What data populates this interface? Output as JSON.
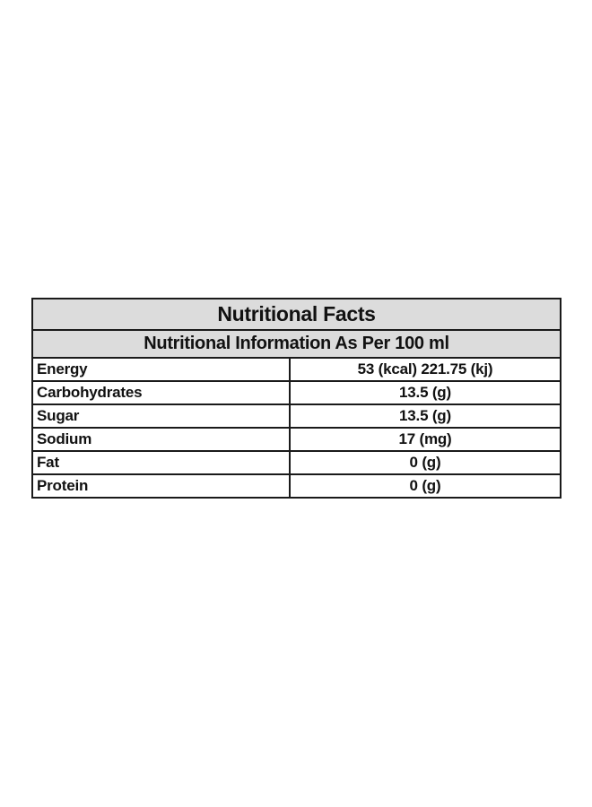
{
  "table": {
    "title": "Nutritional Facts",
    "subtitle": "Nutritional Information As Per 100 ml",
    "rows": [
      {
        "name": "Energy",
        "value": "53 (kcal) 221.75 (kj)"
      },
      {
        "name": "Carbohydrates",
        "value": "13.5 (g)"
      },
      {
        "name": "Sugar",
        "value": "13.5 (g)"
      },
      {
        "name": "Sodium",
        "value": "17 (mg)"
      },
      {
        "name": "Fat",
        "value": "0 (g)"
      },
      {
        "name": "Protein",
        "value": "0 (g)"
      }
    ]
  },
  "colors": {
    "header_background": "#dcdcdc",
    "border": "#1a1a1a",
    "text": "#111111"
  }
}
